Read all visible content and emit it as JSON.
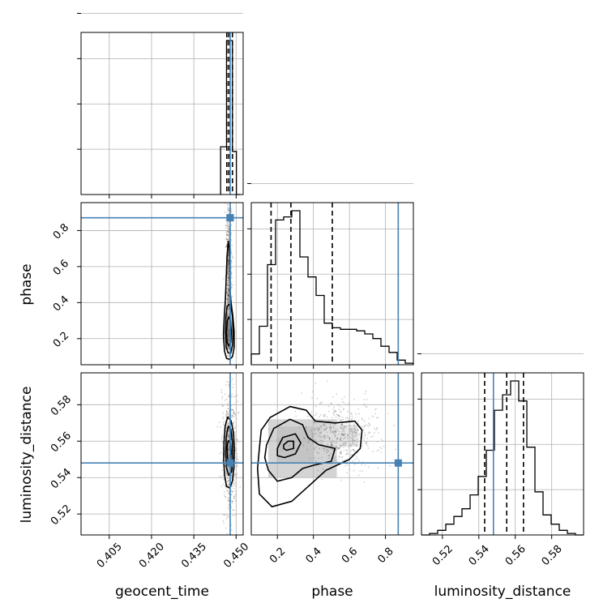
{
  "chart_data": {
    "type": "corner",
    "parameters": [
      "geocent_time",
      "phase",
      "luminosity_distance"
    ],
    "truth": {
      "geocent_time": 0.4479,
      "phase": 0.871,
      "luminosity_distance": 0.548
    },
    "quantiles": {
      "geocent_time": [
        0.4467,
        0.4474,
        0.4487
      ],
      "phase": [
        0.165,
        0.275,
        0.505
      ],
      "luminosity_distance": [
        0.5432,
        0.5553,
        0.5645
      ]
    },
    "axes": {
      "geocent_time": {
        "range": [
          0.395,
          0.4525
        ],
        "ticks": [
          0.405,
          0.42,
          0.435,
          0.45
        ],
        "tick_labels": [
          "0.405",
          "0.420",
          "0.435",
          "0.450"
        ]
      },
      "phase": {
        "range": [
          0.055,
          0.955
        ],
        "ticks": [
          0.2,
          0.4,
          0.6,
          0.8
        ],
        "tick_labels": [
          "0.2",
          "0.4",
          "0.6",
          "0.8"
        ]
      },
      "luminosity_distance": {
        "range": [
          0.5085,
          0.5975
        ],
        "ticks": [
          0.52,
          0.54,
          0.56,
          0.58
        ],
        "tick_labels": [
          "0.52",
          "0.54",
          "0.56",
          "0.58"
        ]
      }
    },
    "histograms": {
      "geocent_time": {
        "edges": [
          0.4445,
          0.4452,
          0.4459,
          0.4466,
          0.4473,
          0.448,
          0.4487,
          0.4494,
          0.4501,
          0.4508,
          0.4515
        ],
        "values": [
          0.31,
          0.31,
          0.31,
          1.0,
          1.0,
          1.0,
          0.28,
          0.28,
          0.0,
          0.0
        ]
      },
      "phase": {
        "edges": [
          0.055,
          0.1,
          0.145,
          0.19,
          0.235,
          0.28,
          0.325,
          0.37,
          0.415,
          0.46,
          0.505,
          0.55,
          0.595,
          0.64,
          0.685,
          0.73,
          0.775,
          0.82,
          0.865,
          0.91,
          0.955
        ],
        "values": [
          0.07,
          0.25,
          0.65,
          0.94,
          0.96,
          1.0,
          0.7,
          0.57,
          0.45,
          0.27,
          0.24,
          0.23,
          0.23,
          0.22,
          0.2,
          0.17,
          0.12,
          0.08,
          0.03,
          0.01
        ]
      },
      "luminosity_distance": {
        "edges": [
          0.5085,
          0.51295,
          0.5174,
          0.52185,
          0.5263,
          0.53075,
          0.5352,
          0.53965,
          0.5441,
          0.54855,
          0.553,
          0.55745,
          0.5619,
          0.56635,
          0.5708,
          0.57525,
          0.5797,
          0.58415,
          0.5886,
          0.59305,
          0.5975
        ],
        "values": [
          0.0,
          0.01,
          0.03,
          0.07,
          0.12,
          0.17,
          0.26,
          0.38,
          0.55,
          0.81,
          0.91,
          1.0,
          0.87,
          0.57,
          0.28,
          0.13,
          0.07,
          0.03,
          0.01,
          0.0
        ]
      }
    },
    "contours": {
      "phase_vs_geocent_time": {
        "x": "geocent_time",
        "y": "phase",
        "levels": [
          [
            [
              0.4458,
              0.32
            ],
            [
              0.4462,
              0.42
            ],
            [
              0.4465,
              0.54
            ],
            [
              0.4468,
              0.66
            ],
            [
              0.4472,
              0.74
            ],
            [
              0.4476,
              0.7
            ],
            [
              0.4478,
              0.6
            ],
            [
              0.4479,
              0.46
            ],
            [
              0.4482,
              0.4
            ],
            [
              0.4488,
              0.33
            ],
            [
              0.4493,
              0.24
            ],
            [
              0.4493,
              0.15
            ],
            [
              0.4487,
              0.1
            ],
            [
              0.4478,
              0.085
            ],
            [
              0.4466,
              0.09
            ],
            [
              0.4459,
              0.13
            ],
            [
              0.4455,
              0.22
            ]
          ],
          [
            [
              0.4464,
              0.32
            ],
            [
              0.4468,
              0.38
            ],
            [
              0.4474,
              0.39
            ],
            [
              0.4481,
              0.38
            ],
            [
              0.4487,
              0.33
            ],
            [
              0.4489,
              0.24
            ],
            [
              0.4487,
              0.16
            ],
            [
              0.4481,
              0.12
            ],
            [
              0.4472,
              0.12
            ],
            [
              0.4465,
              0.15
            ],
            [
              0.4462,
              0.23
            ]
          ],
          [
            [
              0.4469,
              0.3
            ],
            [
              0.4474,
              0.32
            ],
            [
              0.448,
              0.3
            ],
            [
              0.4483,
              0.24
            ],
            [
              0.4481,
              0.18
            ],
            [
              0.4474,
              0.16
            ],
            [
              0.4468,
              0.18
            ],
            [
              0.4466,
              0.24
            ]
          ]
        ]
      },
      "luminosity_distance_vs_geocent_time": {
        "x": "geocent_time",
        "y": "luminosity_distance",
        "levels": [
          [
            [
              0.447,
              0.5732
            ],
            [
              0.4482,
              0.5712
            ],
            [
              0.4491,
              0.5645
            ],
            [
              0.4494,
              0.5552
            ],
            [
              0.4492,
              0.5452
            ],
            [
              0.4487,
              0.5382
            ],
            [
              0.4478,
              0.5342
            ],
            [
              0.4466,
              0.5352
            ],
            [
              0.4459,
              0.5415
            ],
            [
              0.4456,
              0.5495
            ],
            [
              0.4457,
              0.5592
            ],
            [
              0.4461,
              0.5682
            ]
          ],
          [
            [
              0.4472,
              0.5682
            ],
            [
              0.4481,
              0.5665
            ],
            [
              0.4487,
              0.5595
            ],
            [
              0.4488,
              0.5512
            ],
            [
              0.4484,
              0.5432
            ],
            [
              0.4474,
              0.5412
            ],
            [
              0.4466,
              0.5452
            ],
            [
              0.4463,
              0.5532
            ],
            [
              0.4465,
              0.5625
            ]
          ],
          [
            [
              0.4472,
              0.5602
            ],
            [
              0.4479,
              0.5595
            ],
            [
              0.4482,
              0.5542
            ],
            [
              0.448,
              0.5482
            ],
            [
              0.4474,
              0.5472
            ],
            [
              0.4469,
              0.5512
            ],
            [
              0.4468,
              0.5572
            ]
          ]
        ]
      },
      "luminosity_distance_vs_phase": {
        "x": "phase",
        "y": "luminosity_distance",
        "levels": [
          [
            [
              0.1,
              0.556
            ],
            [
              0.11,
              0.566
            ],
            [
              0.16,
              0.573
            ],
            [
              0.27,
              0.579
            ],
            [
              0.36,
              0.577
            ],
            [
              0.41,
              0.571
            ],
            [
              0.52,
              0.57
            ],
            [
              0.63,
              0.571
            ],
            [
              0.67,
              0.566
            ],
            [
              0.66,
              0.556
            ],
            [
              0.6,
              0.55
            ],
            [
              0.47,
              0.544
            ],
            [
              0.37,
              0.535
            ],
            [
              0.28,
              0.527
            ],
            [
              0.17,
              0.524
            ],
            [
              0.1,
              0.531
            ],
            [
              0.09,
              0.545
            ]
          ],
          [
            [
              0.14,
              0.558
            ],
            [
              0.18,
              0.567
            ],
            [
              0.27,
              0.572
            ],
            [
              0.34,
              0.569
            ],
            [
              0.37,
              0.562
            ],
            [
              0.43,
              0.558
            ],
            [
              0.52,
              0.556
            ],
            [
              0.5,
              0.549
            ],
            [
              0.41,
              0.547
            ],
            [
              0.34,
              0.545
            ],
            [
              0.28,
              0.54
            ],
            [
              0.2,
              0.538
            ],
            [
              0.15,
              0.544
            ],
            [
              0.13,
              0.551
            ]
          ],
          [
            [
              0.2,
              0.556
            ],
            [
              0.23,
              0.562
            ],
            [
              0.3,
              0.564
            ],
            [
              0.33,
              0.559
            ],
            [
              0.3,
              0.553
            ],
            [
              0.24,
              0.551
            ],
            [
              0.2,
              0.552
            ]
          ],
          [
            [
              0.235,
              0.558
            ],
            [
              0.26,
              0.56
            ],
            [
              0.29,
              0.56
            ],
            [
              0.29,
              0.556
            ],
            [
              0.25,
              0.555
            ],
            [
              0.235,
              0.556
            ]
          ]
        ]
      }
    },
    "density": {
      "phase_vs_geocent_time": [
        {
          "x": 0.4475,
          "y": 0.22,
          "w": 0.001,
          "h": 0.07,
          "shade": 0.85
        },
        {
          "x": 0.4475,
          "y": 0.28,
          "w": 0.0016,
          "h": 0.12,
          "shade": 0.5
        },
        {
          "x": 0.4475,
          "y": 0.18,
          "w": 0.0016,
          "h": 0.08,
          "shade": 0.5
        },
        {
          "x": 0.4476,
          "y": 0.4,
          "w": 0.0012,
          "h": 0.2,
          "shade": 0.25
        },
        {
          "x": 0.4474,
          "y": 0.6,
          "w": 0.001,
          "h": 0.25,
          "shade": 0.15
        }
      ],
      "luminosity_distance_vs_geocent_time": [
        {
          "x": 0.4476,
          "y": 0.5555,
          "w": 0.0008,
          "h": 0.006,
          "shade": 0.9
        },
        {
          "x": 0.4476,
          "y": 0.5545,
          "w": 0.0016,
          "h": 0.014,
          "shade": 0.5
        },
        {
          "x": 0.4476,
          "y": 0.554,
          "w": 0.0026,
          "h": 0.026,
          "shade": 0.22
        }
      ],
      "luminosity_distance_vs_phase": [
        {
          "x": 0.255,
          "y": 0.558,
          "w": 0.1,
          "h": 0.008,
          "shade": 0.9
        },
        {
          "x": 0.3,
          "y": 0.558,
          "w": 0.2,
          "h": 0.02,
          "shade": 0.5
        },
        {
          "x": 0.34,
          "y": 0.556,
          "w": 0.38,
          "h": 0.032,
          "shade": 0.2
        },
        {
          "x": 0.55,
          "y": 0.563,
          "w": 0.2,
          "h": 0.012,
          "shade": 0.12
        }
      ]
    },
    "truth_color": "#4682b4",
    "hist_color": "#000000",
    "grid": true
  }
}
